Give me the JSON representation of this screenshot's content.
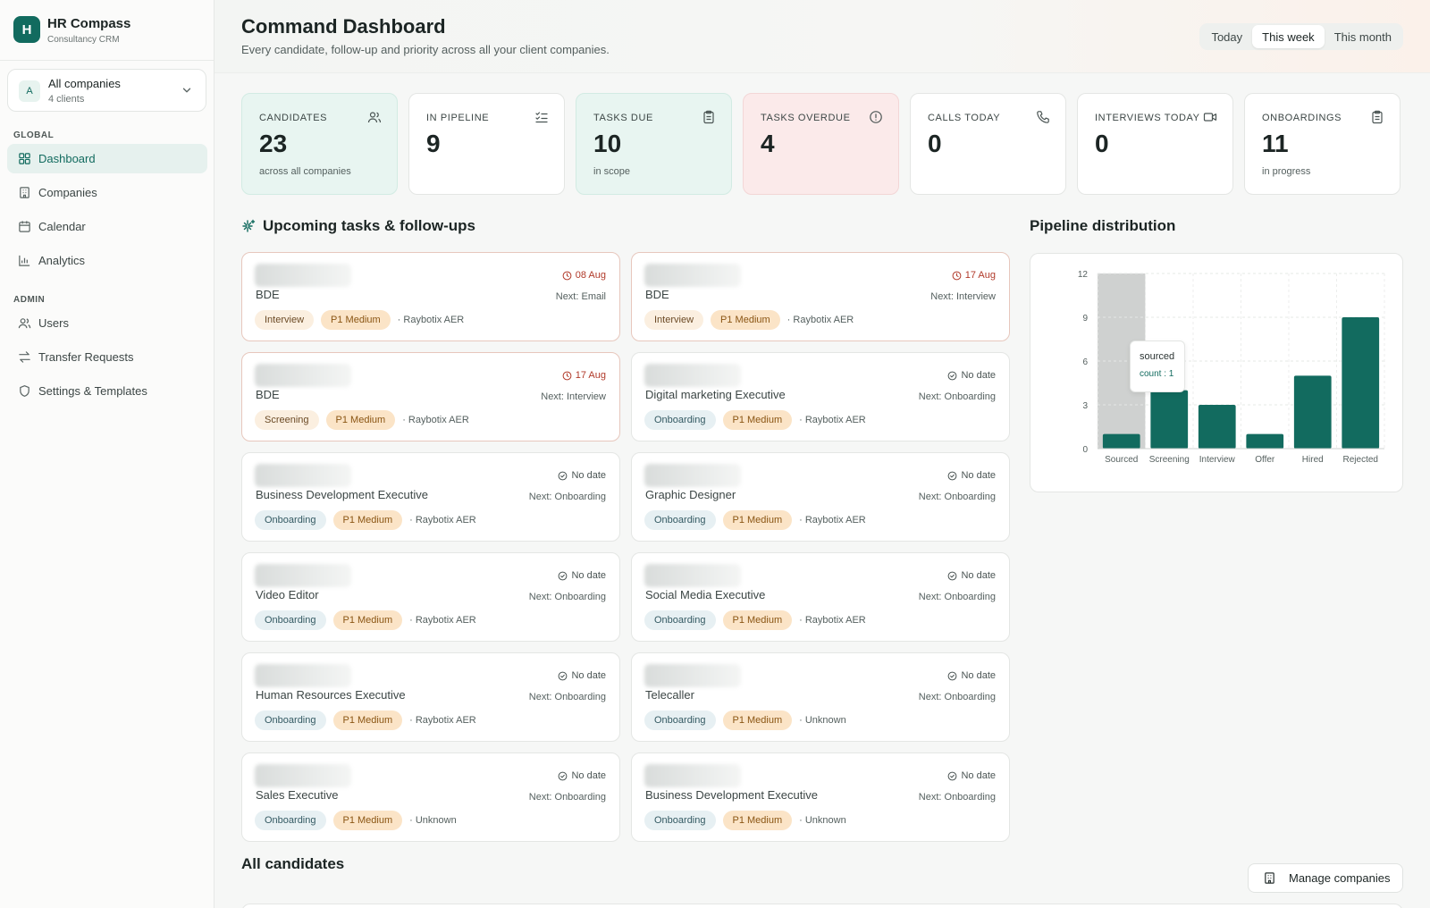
{
  "brand": {
    "logo": "H",
    "name": "HR Compass",
    "sub": "Consultancy CRM"
  },
  "company_select": {
    "avatar": "A",
    "title": "All companies",
    "sub": "4 clients",
    "icon": "chevron-down-icon"
  },
  "nav": {
    "global_label": "GLOBAL",
    "admin_label": "ADMIN",
    "global_items": [
      {
        "label": "Dashboard",
        "icon": "grid-icon",
        "active": true
      },
      {
        "label": "Companies",
        "icon": "building-icon"
      },
      {
        "label": "Calendar",
        "icon": "calendar-icon"
      },
      {
        "label": "Analytics",
        "icon": "bar-chart-icon"
      }
    ],
    "admin_items": [
      {
        "label": "Users",
        "icon": "users-icon"
      },
      {
        "label": "Transfer Requests",
        "icon": "transfer-icon"
      },
      {
        "label": "Settings & Templates",
        "icon": "shield-icon"
      }
    ]
  },
  "header": {
    "title": "Command Dashboard",
    "subtitle": "Every candidate, follow-up and priority across all your client companies.",
    "ranges": [
      "Today",
      "This week",
      "This month"
    ],
    "active_range": "This week"
  },
  "stats": [
    {
      "label": "CANDIDATES",
      "value": "23",
      "note": "across all companies",
      "icon": "users-icon",
      "tone": "teal"
    },
    {
      "label": "IN PIPELINE",
      "value": "9",
      "note": "",
      "icon": "list-check-icon",
      "tone": "plain"
    },
    {
      "label": "TASKS DUE",
      "value": "10",
      "note": "in scope",
      "icon": "clipboard-icon",
      "tone": "teal"
    },
    {
      "label": "TASKS OVERDUE",
      "value": "4",
      "note": "",
      "icon": "alert-circle-icon",
      "tone": "rose"
    },
    {
      "label": "CALLS TODAY",
      "value": "0",
      "note": "",
      "icon": "phone-icon",
      "tone": "plain"
    },
    {
      "label": "INTERVIEWS TODAY",
      "value": "0",
      "note": "",
      "icon": "video-icon",
      "tone": "plain"
    },
    {
      "label": "ONBOARDINGS",
      "value": "11",
      "note": "in progress",
      "icon": "clipboard-icon",
      "tone": "plain"
    }
  ],
  "tasks_section": {
    "title": "Upcoming tasks & follow-ups",
    "icon": "sparkle-icon"
  },
  "tasks": [
    {
      "role": "BDE",
      "date": "08 Aug",
      "next": "Next: Email",
      "stage": "Interview",
      "priority": "P1 Medium",
      "company": "· Raybotix AER",
      "overdue": true
    },
    {
      "role": "BDE",
      "date": "17 Aug",
      "next": "Next: Interview",
      "stage": "Interview",
      "priority": "P1 Medium",
      "company": "· Raybotix AER",
      "overdue": true
    },
    {
      "role": "BDE",
      "date": "17 Aug",
      "next": "Next: Interview",
      "stage": "Screening",
      "priority": "P1 Medium",
      "company": "· Raybotix AER",
      "overdue": true
    },
    {
      "role": "Digital marketing Executive",
      "date": "No date",
      "next": "Next: Onboarding",
      "stage": "Onboarding",
      "priority": "P1 Medium",
      "company": "· Raybotix AER",
      "overdue": false
    },
    {
      "role": "Business Development Executive",
      "date": "No date",
      "next": "Next: Onboarding",
      "stage": "Onboarding",
      "priority": "P1 Medium",
      "company": "· Raybotix AER",
      "overdue": false
    },
    {
      "role": "Graphic Designer",
      "date": "No date",
      "next": "Next: Onboarding",
      "stage": "Onboarding",
      "priority": "P1 Medium",
      "company": "· Raybotix AER",
      "overdue": false
    },
    {
      "role": "Video Editor",
      "date": "No date",
      "next": "Next: Onboarding",
      "stage": "Onboarding",
      "priority": "P1 Medium",
      "company": "· Raybotix AER",
      "overdue": false
    },
    {
      "role": "Social Media Executive",
      "date": "No date",
      "next": "Next: Onboarding",
      "stage": "Onboarding",
      "priority": "P1 Medium",
      "company": "· Raybotix AER",
      "overdue": false
    },
    {
      "role": "Human Resources Executive",
      "date": "No date",
      "next": "Next: Onboarding",
      "stage": "Onboarding",
      "priority": "P1 Medium",
      "company": "· Raybotix AER",
      "overdue": false
    },
    {
      "role": "Telecaller",
      "date": "No date",
      "next": "Next: Onboarding",
      "stage": "Onboarding",
      "priority": "P1 Medium",
      "company": "· Unknown",
      "overdue": false
    },
    {
      "role": "Sales Executive",
      "date": "No date",
      "next": "Next: Onboarding",
      "stage": "Onboarding",
      "priority": "P1 Medium",
      "company": "· Unknown",
      "overdue": false
    },
    {
      "role": "Business Development Executive",
      "date": "No date",
      "next": "Next: Onboarding",
      "stage": "Onboarding",
      "priority": "P1 Medium",
      "company": "· Unknown",
      "overdue": false
    }
  ],
  "pipeline_section": {
    "title": "Pipeline distribution"
  },
  "chart_data": {
    "type": "bar",
    "title": "",
    "xlabel": "",
    "ylabel": "",
    "categories": [
      "Sourced",
      "Screening",
      "Interview",
      "Offer",
      "Hired",
      "Rejected"
    ],
    "values": [
      1,
      4,
      3,
      1,
      5,
      9
    ],
    "ylim": [
      0,
      12
    ],
    "yticks": [
      "0",
      "3",
      "6",
      "9",
      "12"
    ],
    "grid": true,
    "bar_color": "#126b5f",
    "hover_color": "#cfd1d0",
    "highlighted": "Sourced",
    "tooltip": {
      "label": "sourced",
      "value": "count : 1"
    }
  },
  "candidates_section": {
    "title": "All candidates"
  },
  "manage_button": {
    "label": "Manage companies",
    "icon": "building-icon"
  },
  "colors": {
    "accent": "#126b5f",
    "overdue": "#b13a2a",
    "priority_bg": "#fbe4c7"
  }
}
